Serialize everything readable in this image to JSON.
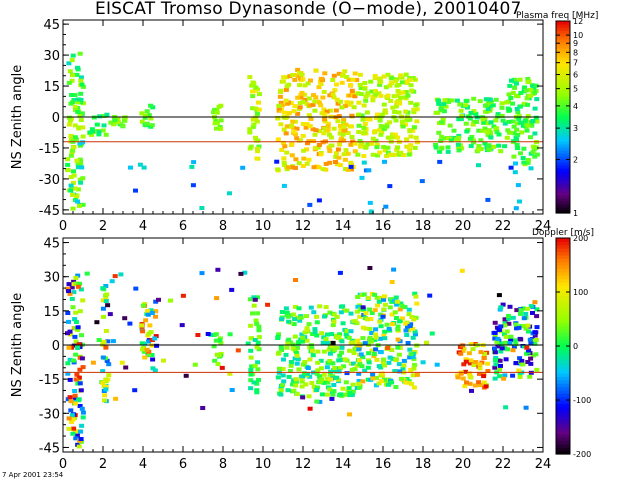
{
  "figure": {
    "title": "EISCAT Tromso Dynasonde (O−mode),  20010407",
    "footer": "7 Apr 2001 23:54"
  },
  "chart_data": [
    {
      "type": "heatmap",
      "name": "plasma-frequency-panel",
      "ylabel": "NS Zenith angle",
      "xlabel": "",
      "xlim": [
        0,
        24
      ],
      "ylim": [
        -47,
        47
      ],
      "x_ticks": [
        0,
        2,
        4,
        6,
        8,
        10,
        12,
        14,
        16,
        18,
        20,
        22,
        24
      ],
      "y_ticks": [
        -45,
        -30,
        -15,
        0,
        15,
        30,
        45
      ],
      "reference_lines": [
        {
          "value": 0,
          "color": "#000000",
          "name": "zenith-line"
        },
        {
          "value": -12,
          "color": "#cc3300",
          "name": "offset-line"
        }
      ],
      "colorbar": {
        "title": "Plasma freq [MHz]",
        "scale": "log",
        "range": [
          1,
          12
        ],
        "ticks": [
          1,
          2,
          3,
          4,
          5,
          6,
          7,
          8,
          9,
          10,
          12
        ]
      },
      "clusters": [
        {
          "x": [
            0.1,
            0.9
          ],
          "y": [
            -44,
            32
          ],
          "value_range": [
            2.5,
            6
          ]
        },
        {
          "x": [
            1.2,
            3.0
          ],
          "y": [
            -8,
            3
          ],
          "value_range": [
            3,
            5
          ]
        },
        {
          "x": [
            3.8,
            4.4
          ],
          "y": [
            -4,
            8
          ],
          "value_range": [
            3,
            5
          ]
        },
        {
          "x": [
            7.4,
            7.8
          ],
          "y": [
            -8,
            7
          ],
          "value_range": [
            4,
            5
          ]
        },
        {
          "x": [
            9.2,
            9.7
          ],
          "y": [
            -20,
            22
          ],
          "value_range": [
            4,
            7
          ]
        },
        {
          "x": [
            10.6,
            14.6
          ],
          "y": [
            -25,
            24
          ],
          "value_range": [
            5,
            9
          ]
        },
        {
          "x": [
            14.6,
            17.6
          ],
          "y": [
            -18,
            22
          ],
          "value_range": [
            4,
            7
          ]
        },
        {
          "x": [
            18.5,
            22.0
          ],
          "y": [
            -16,
            10
          ],
          "value_range": [
            3,
            5
          ]
        },
        {
          "x": [
            22.0,
            23.6
          ],
          "y": [
            -22,
            20
          ],
          "value_range": [
            3,
            5
          ]
        },
        {
          "x": [
            0.5,
            23.5
          ],
          "y": [
            -46,
            -20
          ],
          "value_range": [
            1.8,
            3
          ]
        }
      ]
    },
    {
      "type": "heatmap",
      "name": "doppler-panel",
      "ylabel": "NS Zenith angle",
      "xlabel": "",
      "xlim": [
        0,
        24
      ],
      "ylim": [
        -47,
        47
      ],
      "x_ticks": [
        0,
        2,
        4,
        6,
        8,
        10,
        12,
        14,
        16,
        18,
        20,
        22,
        24
      ],
      "y_ticks": [
        -45,
        -30,
        -15,
        0,
        15,
        30,
        45
      ],
      "reference_lines": [
        {
          "value": 0,
          "color": "#000000",
          "name": "zenith-line"
        },
        {
          "value": -12,
          "color": "#cc3300",
          "name": "offset-line"
        }
      ],
      "colorbar": {
        "title": "Doppler [m/s]",
        "scale": "linear",
        "range": [
          -200,
          200
        ],
        "ticks": [
          -200,
          -100,
          0,
          100,
          200
        ]
      },
      "clusters": [
        {
          "x": [
            0.1,
            0.9
          ],
          "y": [
            -44,
            32
          ],
          "value_range": [
            -150,
            200
          ]
        },
        {
          "x": [
            1.8,
            2.2
          ],
          "y": [
            -24,
            28
          ],
          "value_range": [
            -100,
            120
          ]
        },
        {
          "x": [
            3.8,
            4.6
          ],
          "y": [
            -12,
            20
          ],
          "value_range": [
            -150,
            200
          ]
        },
        {
          "x": [
            7.4,
            7.8
          ],
          "y": [
            -8,
            8
          ],
          "value_range": [
            0,
            60
          ]
        },
        {
          "x": [
            9.2,
            9.7
          ],
          "y": [
            -20,
            22
          ],
          "value_range": [
            -30,
            60
          ]
        },
        {
          "x": [
            10.6,
            14.6
          ],
          "y": [
            -22,
            18
          ],
          "value_range": [
            -40,
            80
          ]
        },
        {
          "x": [
            14.6,
            17.6
          ],
          "y": [
            -18,
            24
          ],
          "value_range": [
            -80,
            140
          ]
        },
        {
          "x": [
            19.6,
            21.2
          ],
          "y": [
            -18,
            2
          ],
          "value_range": [
            60,
            200
          ]
        },
        {
          "x": [
            21.4,
            23.6
          ],
          "y": [
            -14,
            20
          ],
          "value_range": [
            -160,
            60
          ]
        },
        {
          "x": [
            0.5,
            23.5
          ],
          "y": [
            -30,
            35
          ],
          "value_range": [
            -200,
            200
          ]
        }
      ]
    }
  ]
}
